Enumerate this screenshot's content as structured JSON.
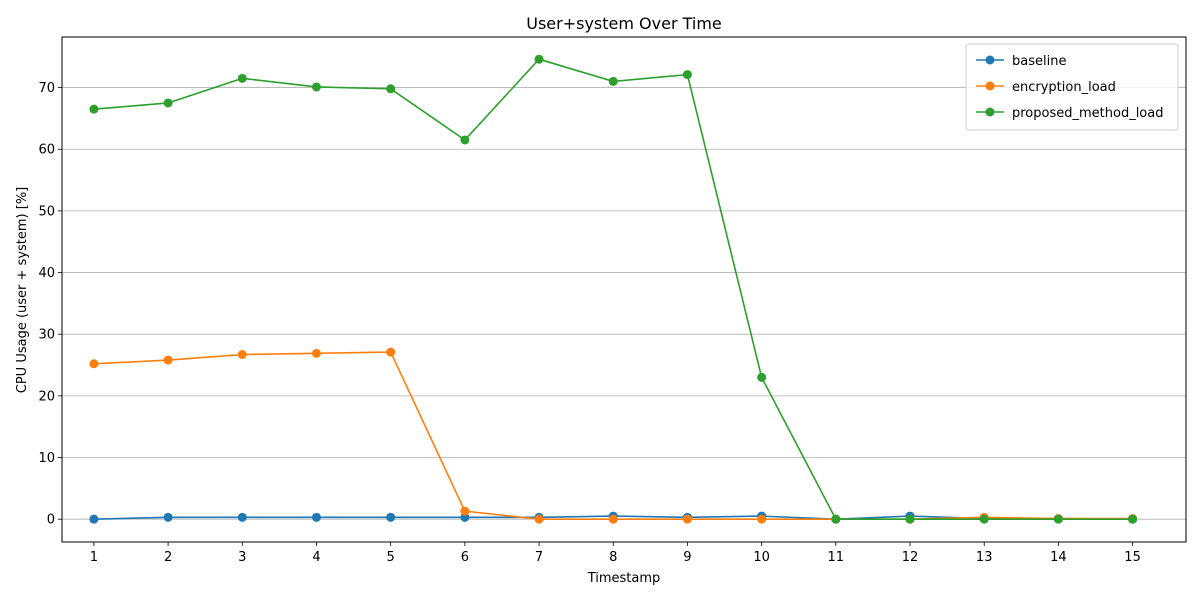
{
  "chart_data": {
    "type": "line",
    "title": "User+system Over Time",
    "xlabel": "Timestamp",
    "ylabel": "CPU Usage (user + system) [%]",
    "x": [
      1,
      2,
      3,
      4,
      5,
      6,
      7,
      8,
      9,
      10,
      11,
      12,
      13,
      14,
      15
    ],
    "xlim": [
      0.57,
      15.72
    ],
    "ylim": [
      -3.7,
      78.2
    ],
    "yticks": [
      0,
      10,
      20,
      30,
      40,
      50,
      60,
      70
    ],
    "grid": "horizontal",
    "legend_position": "top-right",
    "series": [
      {
        "name": "baseline",
        "color": "#1f77b4",
        "values": [
          0.0,
          0.3,
          0.3,
          0.3,
          0.3,
          0.3,
          0.3,
          0.5,
          0.3,
          0.5,
          0.0,
          0.5,
          0.1,
          0.1,
          0.0
        ]
      },
      {
        "name": "encryption_load",
        "color": "#ff7f0e",
        "values": [
          25.2,
          25.8,
          26.7,
          26.9,
          27.1,
          1.3,
          0.0,
          0.0,
          0.0,
          0.0,
          0.0,
          0.0,
          0.3,
          0.1,
          0.1
        ]
      },
      {
        "name": "proposed_method_load",
        "color": "#2ca02c",
        "values": [
          66.5,
          67.5,
          71.5,
          70.1,
          69.8,
          61.5,
          74.6,
          71.0,
          72.1,
          23.0,
          0.0,
          0.0,
          0.0,
          0.0,
          0.0
        ]
      }
    ]
  }
}
